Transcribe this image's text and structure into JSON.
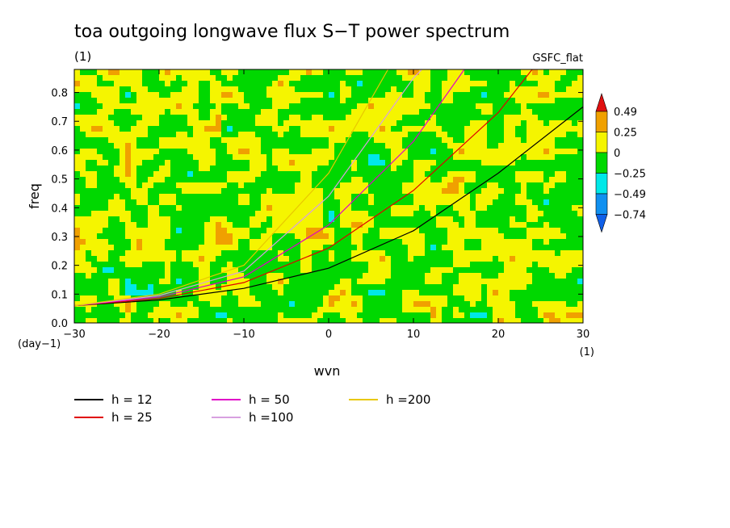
{
  "chart_data": {
    "type": "heatmap",
    "title": "toa outgoing longwave flux S−T power spectrum",
    "subtitle": "(1)",
    "source_label": "GSFC_flat",
    "xlabel": "wvn",
    "ylabel": "freq",
    "x_unit": "(1)",
    "y_unit": "(day−1)",
    "xlim": [
      -30,
      30
    ],
    "ylim": [
      0,
      0.88
    ],
    "x_ticks": [
      {
        "v": -30,
        "label": "−30"
      },
      {
        "v": -20,
        "label": "−20"
      },
      {
        "v": -10,
        "label": "−10"
      },
      {
        "v": 0,
        "label": "0"
      },
      {
        "v": 10,
        "label": "10"
      },
      {
        "v": 20,
        "label": "20"
      },
      {
        "v": 30,
        "label": "30"
      }
    ],
    "y_ticks": [
      {
        "v": 0,
        "label": "0.0"
      },
      {
        "v": 0.1,
        "label": "0.1"
      },
      {
        "v": 0.2,
        "label": "0.2"
      },
      {
        "v": 0.3,
        "label": "0.3"
      },
      {
        "v": 0.4,
        "label": "0.4"
      },
      {
        "v": 0.5,
        "label": "0.5"
      },
      {
        "v": 0.6,
        "label": "0.6"
      },
      {
        "v": 0.7,
        "label": "0.7"
      },
      {
        "v": 0.8,
        "label": "0.8"
      }
    ],
    "colorbar": {
      "levels": [
        {
          "v": 0.49,
          "label": "0.49"
        },
        {
          "v": 0.25,
          "label": "0.25"
        },
        {
          "v": 0,
          "label": "0"
        },
        {
          "v": -0.25,
          "label": "−0.25"
        },
        {
          "v": -0.49,
          "label": "−0.49"
        },
        {
          "v": -0.74,
          "label": "−0.74"
        }
      ],
      "colors": [
        "#e01010",
        "#f0a000",
        "#f5f500",
        "#00d800",
        "#00e8e8",
        "#1090f0",
        "#1060e8"
      ]
    },
    "series": [
      {
        "name": "h = 12",
        "color": "#000000",
        "points": [
          [
            -30,
            0.06
          ],
          [
            -20,
            0.08
          ],
          [
            -10,
            0.12
          ],
          [
            0,
            0.19
          ],
          [
            10,
            0.32
          ],
          [
            20,
            0.52
          ],
          [
            30,
            0.75
          ]
        ]
      },
      {
        "name": "h = 25",
        "color": "#e00000",
        "points": [
          [
            -30,
            0.06
          ],
          [
            -20,
            0.085
          ],
          [
            -10,
            0.14
          ],
          [
            0,
            0.26
          ],
          [
            10,
            0.46
          ],
          [
            20,
            0.73
          ],
          [
            24,
            0.88
          ]
        ]
      },
      {
        "name": "h = 50",
        "color": "#e000c8",
        "points": [
          [
            -30,
            0.06
          ],
          [
            -20,
            0.09
          ],
          [
            -10,
            0.16
          ],
          [
            0,
            0.34
          ],
          [
            10,
            0.63
          ],
          [
            16,
            0.88
          ]
        ]
      },
      {
        "name": "h =100",
        "color": "#d8a0e0",
        "points": [
          [
            -30,
            0.06
          ],
          [
            -20,
            0.095
          ],
          [
            -10,
            0.18
          ],
          [
            0,
            0.44
          ],
          [
            10,
            0.85
          ],
          [
            11,
            0.88
          ]
        ]
      },
      {
        "name": "h =200",
        "color": "#e8c800",
        "points": [
          [
            -30,
            0.06
          ],
          [
            -20,
            0.1
          ],
          [
            -10,
            0.2
          ],
          [
            0,
            0.52
          ],
          [
            7,
            0.88
          ]
        ]
      }
    ],
    "legend_placement": "bottom"
  }
}
